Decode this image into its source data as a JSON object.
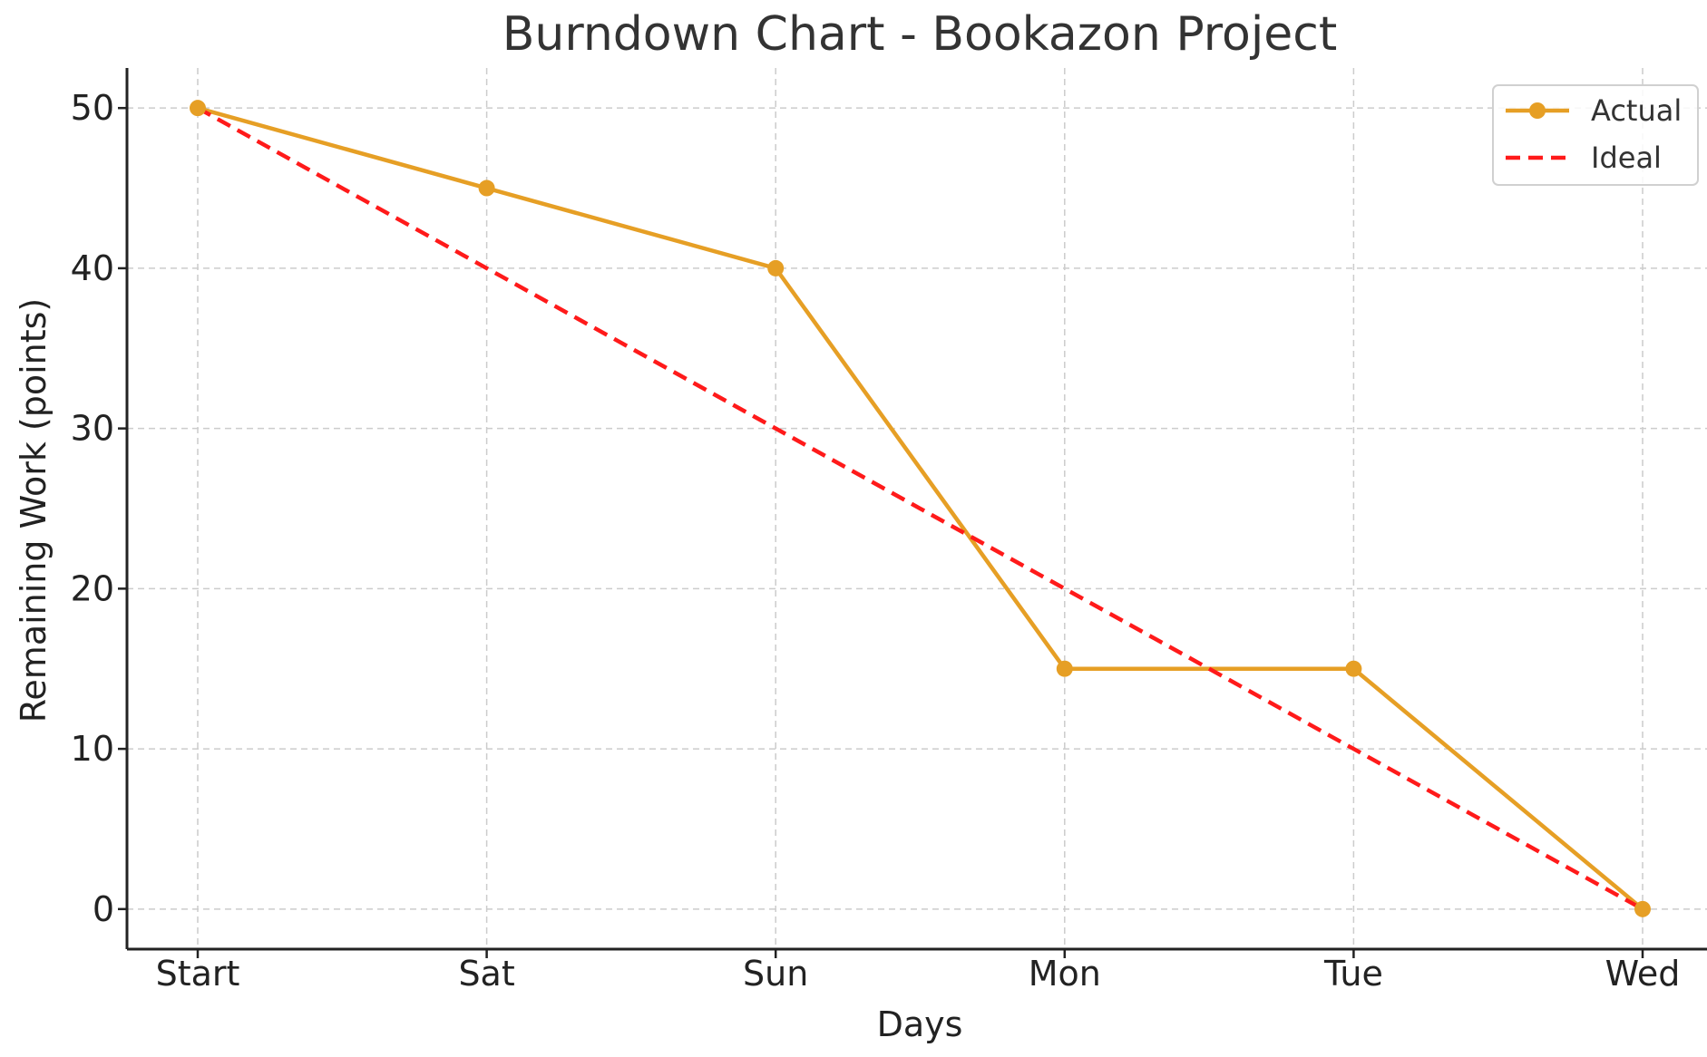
{
  "chart_data": {
    "type": "line",
    "title": "Burndown Chart - Bookazon Project",
    "xlabel": "Days",
    "ylabel": "Remaining Work (points)",
    "categories": [
      "Start",
      "Sat",
      "Sun",
      "Mon",
      "Tue",
      "Wed"
    ],
    "ylim": [
      -2.5,
      52.5
    ],
    "yticks": [
      0,
      10,
      20,
      30,
      40,
      50
    ],
    "grid": true,
    "legend_position": "top-right",
    "series": [
      {
        "name": "Actual",
        "values": [
          50,
          45,
          40,
          15,
          15,
          0
        ],
        "color": "#E69F25",
        "line_style": "solid",
        "marker": "circle"
      },
      {
        "name": "Ideal",
        "values": [
          50,
          40,
          30,
          20,
          10,
          0
        ],
        "color": "#FF1A1A",
        "line_style": "dashed",
        "marker": "none"
      }
    ]
  }
}
